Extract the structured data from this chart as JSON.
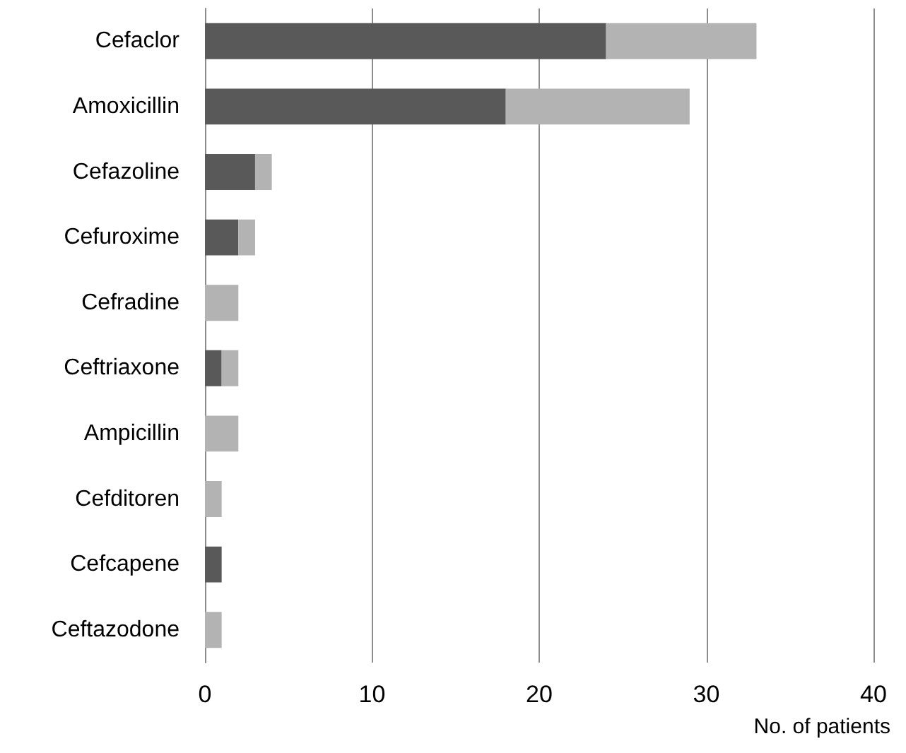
{
  "chart_data": {
    "type": "bar",
    "orientation": "horizontal",
    "stacked": true,
    "xlabel": "No. of patients",
    "categories": [
      "Cefaclor",
      "Amoxicillin",
      "Cefazoline",
      "Cefuroxime",
      "Cefradine",
      "Ceftriaxone",
      "Ampicillin",
      "Cefditoren",
      "Cefcapene",
      "Ceftazodone"
    ],
    "series": [
      {
        "color": "#595959",
        "values": [
          24,
          18,
          3,
          2,
          0,
          1,
          0,
          0,
          1,
          0
        ]
      },
      {
        "color": "#b3b3b3",
        "values": [
          9,
          11,
          1,
          1,
          2,
          1,
          2,
          1,
          0,
          1
        ]
      }
    ],
    "xlim": [
      0,
      40
    ],
    "xticks": [
      0,
      10,
      20,
      30,
      40
    ],
    "grid": "x"
  }
}
